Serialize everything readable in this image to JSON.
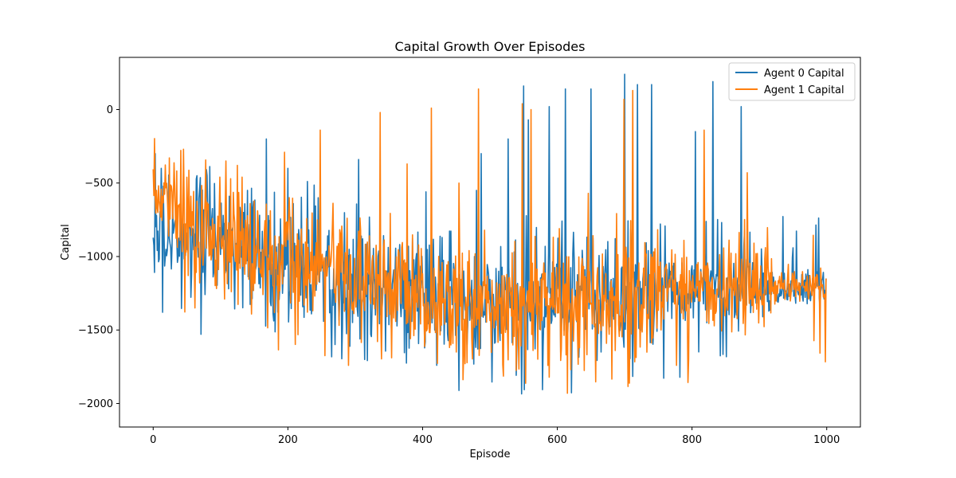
{
  "chart_data": {
    "type": "line",
    "title": "Capital Growth Over Episodes",
    "xlabel": "Episode",
    "ylabel": "Capital",
    "xlim": [
      -50,
      1050
    ],
    "ylim": [
      -2160,
      355
    ],
    "x_ticks": [
      0,
      200,
      400,
      600,
      800,
      1000
    ],
    "y_ticks": [
      0,
      -500,
      -1000,
      -1500,
      -2000
    ],
    "y_tick_labels": [
      "0",
      "−500",
      "−1000",
      "−1500",
      "−2000"
    ],
    "x_tick_labels": [
      "0",
      "200",
      "400",
      "600",
      "800",
      "1000"
    ],
    "legend": {
      "position": "top-right",
      "entries": [
        "Agent 0 Capital",
        "Agent 1 Capital"
      ]
    },
    "grid": false,
    "series": [
      {
        "name": "Agent 0 Capital",
        "color": "#1f77b4",
        "episodes": [
          0,
          999
        ],
        "y_start": -900,
        "y_end": -1150,
        "spikes": [
          [
            3,
            -300
          ],
          [
            12,
            -400
          ],
          [
            65,
            -450
          ],
          [
            80,
            -450
          ],
          [
            140,
            -550
          ],
          [
            168,
            -200
          ],
          [
            200,
            -400
          ],
          [
            245,
            -600
          ],
          [
            305,
            -340
          ],
          [
            405,
            -560
          ],
          [
            480,
            -550
          ],
          [
            487,
            -300
          ],
          [
            527,
            -200
          ],
          [
            550,
            160
          ],
          [
            557,
            -70
          ],
          [
            588,
            20
          ],
          [
            612,
            140
          ],
          [
            650,
            140
          ],
          [
            700,
            240
          ],
          [
            719,
            170
          ],
          [
            740,
            170
          ],
          [
            805,
            -150
          ],
          [
            831,
            190
          ],
          [
            873,
            20
          ]
        ]
      },
      {
        "name": "Agent 1 Capital",
        "color": "#ff7f0e",
        "episodes": [
          0,
          999
        ],
        "y_start": -550,
        "y_end": -1150,
        "spikes": [
          [
            5,
            -550
          ],
          [
            45,
            -270
          ],
          [
            108,
            -350
          ],
          [
            125,
            -380
          ],
          [
            195,
            -290
          ],
          [
            248,
            -140
          ],
          [
            337,
            -20
          ],
          [
            377,
            -370
          ],
          [
            413,
            10
          ],
          [
            454,
            -500
          ],
          [
            483,
            140
          ],
          [
            548,
            40
          ],
          [
            561,
            0
          ],
          [
            646,
            -570
          ],
          [
            699,
            70
          ],
          [
            712,
            130
          ],
          [
            818,
            -140
          ],
          [
            882,
            -430
          ]
        ]
      }
    ]
  }
}
